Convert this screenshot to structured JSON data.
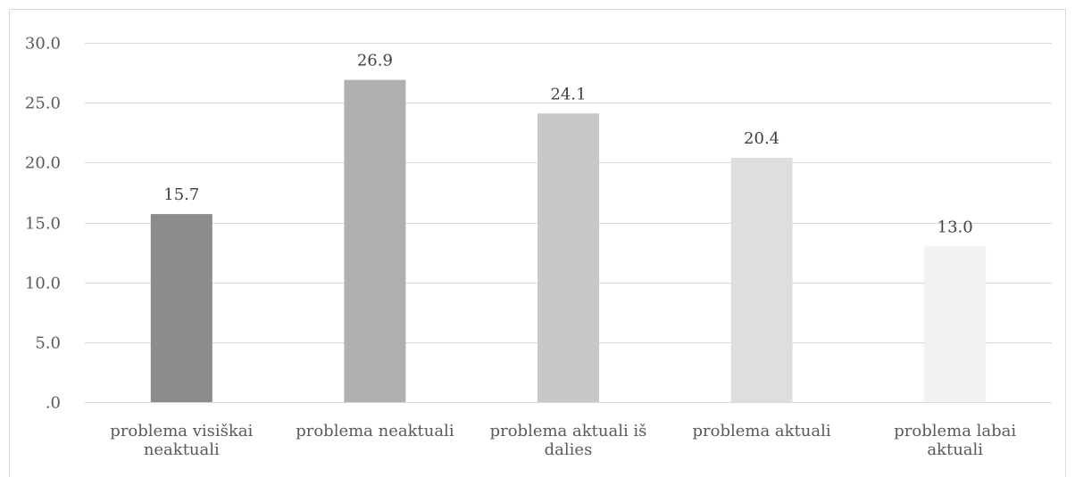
{
  "chart_data": {
    "type": "bar",
    "title": "",
    "xlabel": "",
    "ylabel": "",
    "categories": [
      [
        "problema visiškai",
        "neaktuali"
      ],
      [
        "problema neaktuali"
      ],
      [
        "problema aktuali iš",
        "dalies"
      ],
      [
        "problema aktuali"
      ],
      [
        "problema labai",
        "aktuali"
      ]
    ],
    "values": [
      15.7,
      26.9,
      24.1,
      20.4,
      13.0
    ],
    "data_labels": [
      "15.7",
      "26.9",
      "24.1",
      "20.4",
      "13.0"
    ],
    "ylim": [
      0,
      30
    ],
    "yticks": [
      0,
      5,
      10,
      15,
      20,
      25,
      30
    ],
    "ytick_labels": [
      ".0",
      "5.0",
      "10.0",
      "15.0",
      "20.0",
      "25.0",
      "30.0"
    ],
    "bar_colors": [
      "#8c8c8c",
      "#b0b0b0",
      "#c8c8c8",
      "#dedede",
      "#f2f2f2"
    ],
    "grid": true,
    "legend": "none"
  }
}
